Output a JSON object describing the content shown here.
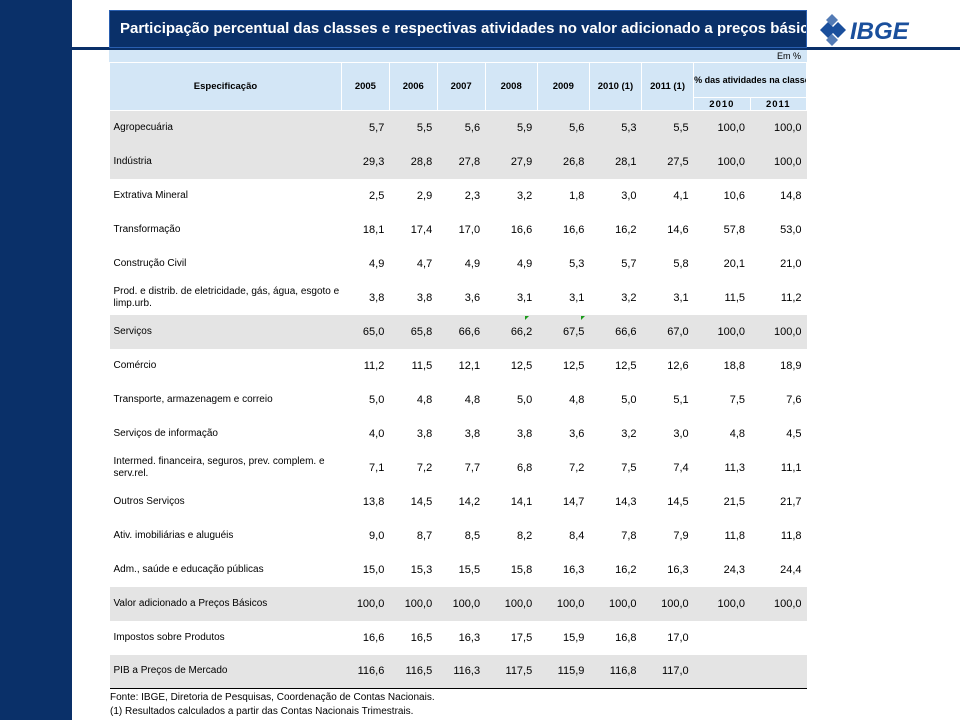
{
  "title": "Participação percentual das classes e respectivas atividades no valor adicionado a preços básicos",
  "logo_text": "IBGE",
  "unit": "Em %",
  "columns": {
    "spec": "Especificação",
    "years": [
      "2005",
      "2006",
      "2007",
      "2008",
      "2009",
      "2010 (1)",
      "2011 (1)"
    ],
    "pct_group": "% das atividades na classe",
    "pct_years": [
      "2010",
      "2011"
    ]
  },
  "rows": [
    {
      "label": "Agropecuária",
      "values": [
        "5,7",
        "5,5",
        "5,6",
        "5,9",
        "5,6",
        "5,3",
        "5,5",
        "100,0",
        "100,0"
      ],
      "shaded": true
    },
    {
      "label": "Indústria",
      "values": [
        "29,3",
        "28,8",
        "27,8",
        "27,9",
        "26,8",
        "28,1",
        "27,5",
        "100,0",
        "100,0"
      ],
      "shaded": true
    },
    {
      "label": "Extrativa Mineral",
      "values": [
        "2,5",
        "2,9",
        "2,3",
        "3,2",
        "1,8",
        "3,0",
        "4,1",
        "10,6",
        "14,8"
      ],
      "shaded": false
    },
    {
      "label": "Transformação",
      "values": [
        "18,1",
        "17,4",
        "17,0",
        "16,6",
        "16,6",
        "16,2",
        "14,6",
        "57,8",
        "53,0"
      ],
      "shaded": false
    },
    {
      "label": "Construção Civil",
      "values": [
        "4,9",
        "4,7",
        "4,9",
        "4,9",
        "5,3",
        "5,7",
        "5,8",
        "20,1",
        "21,0"
      ],
      "shaded": false
    },
    {
      "label": "Prod. e distrib. de eletricidade, gás, água, esgoto e limp.urb.",
      "values": [
        "3,8",
        "3,8",
        "3,6",
        "3,1",
        "3,1",
        "3,2",
        "3,1",
        "11,5",
        "11,2"
      ],
      "shaded": false
    },
    {
      "label": "Serviços",
      "values": [
        "65,0",
        "65,8",
        "66,6",
        "66,2",
        "67,5",
        "66,6",
        "67,0",
        "100,0",
        "100,0"
      ],
      "shaded": true
    },
    {
      "label": "Comércio",
      "values": [
        "11,2",
        "11,5",
        "12,1",
        "12,5",
        "12,5",
        "12,5",
        "12,6",
        "18,8",
        "18,9"
      ],
      "shaded": false
    },
    {
      "label": "Transporte, armazenagem e correio",
      "values": [
        "5,0",
        "4,8",
        "4,8",
        "5,0",
        "4,8",
        "5,0",
        "5,1",
        "7,5",
        "7,6"
      ],
      "shaded": false
    },
    {
      "label": "Serviços de informação",
      "values": [
        "4,0",
        "3,8",
        "3,8",
        "3,8",
        "3,6",
        "3,2",
        "3,0",
        "4,8",
        "4,5"
      ],
      "shaded": false
    },
    {
      "label": "Intermed. financeira, seguros, prev. complem. e serv.rel.",
      "values": [
        "7,1",
        "7,2",
        "7,7",
        "6,8",
        "7,2",
        "7,5",
        "7,4",
        "11,3",
        "11,1"
      ],
      "shaded": false
    },
    {
      "label": "Outros Serviços",
      "values": [
        "13,8",
        "14,5",
        "14,2",
        "14,1",
        "14,7",
        "14,3",
        "14,5",
        "21,5",
        "21,7"
      ],
      "shaded": false
    },
    {
      "label": "Ativ. imobiliárias e aluguéis",
      "values": [
        "9,0",
        "8,7",
        "8,5",
        "8,2",
        "8,4",
        "7,8",
        "7,9",
        "11,8",
        "11,8"
      ],
      "shaded": false
    },
    {
      "label": "Adm., saúde e educação públicas",
      "values": [
        "15,0",
        "15,3",
        "15,5",
        "15,8",
        "16,3",
        "16,2",
        "16,3",
        "24,3",
        "24,4"
      ],
      "shaded": false
    },
    {
      "label": "Valor adicionado a Preços Básicos",
      "values": [
        "100,0",
        "100,0",
        "100,0",
        "100,0",
        "100,0",
        "100,0",
        "100,0",
        "100,0",
        "100,0"
      ],
      "shaded": true
    },
    {
      "label": "Impostos sobre Produtos",
      "values": [
        "16,6",
        "16,5",
        "16,3",
        "17,5",
        "15,9",
        "16,8",
        "17,0",
        "",
        ""
      ],
      "shaded": false
    },
    {
      "label": "PIB a Preços de Mercado",
      "values": [
        "116,6",
        "116,5",
        "116,3",
        "117,5",
        "115,9",
        "116,8",
        "117,0",
        "",
        ""
      ],
      "shaded": true
    }
  ],
  "footnotes": [
    "Fonte: IBGE, Diretoria de Pesquisas, Coordenação de Contas Nacionais.",
    "(1) Resultados calculados a partir das Contas Nacionais Trimestrais."
  ],
  "colors": {
    "navy": "#0a3069",
    "header_bg": "#d3e6f6",
    "shaded_row": "#e4e4e4"
  }
}
